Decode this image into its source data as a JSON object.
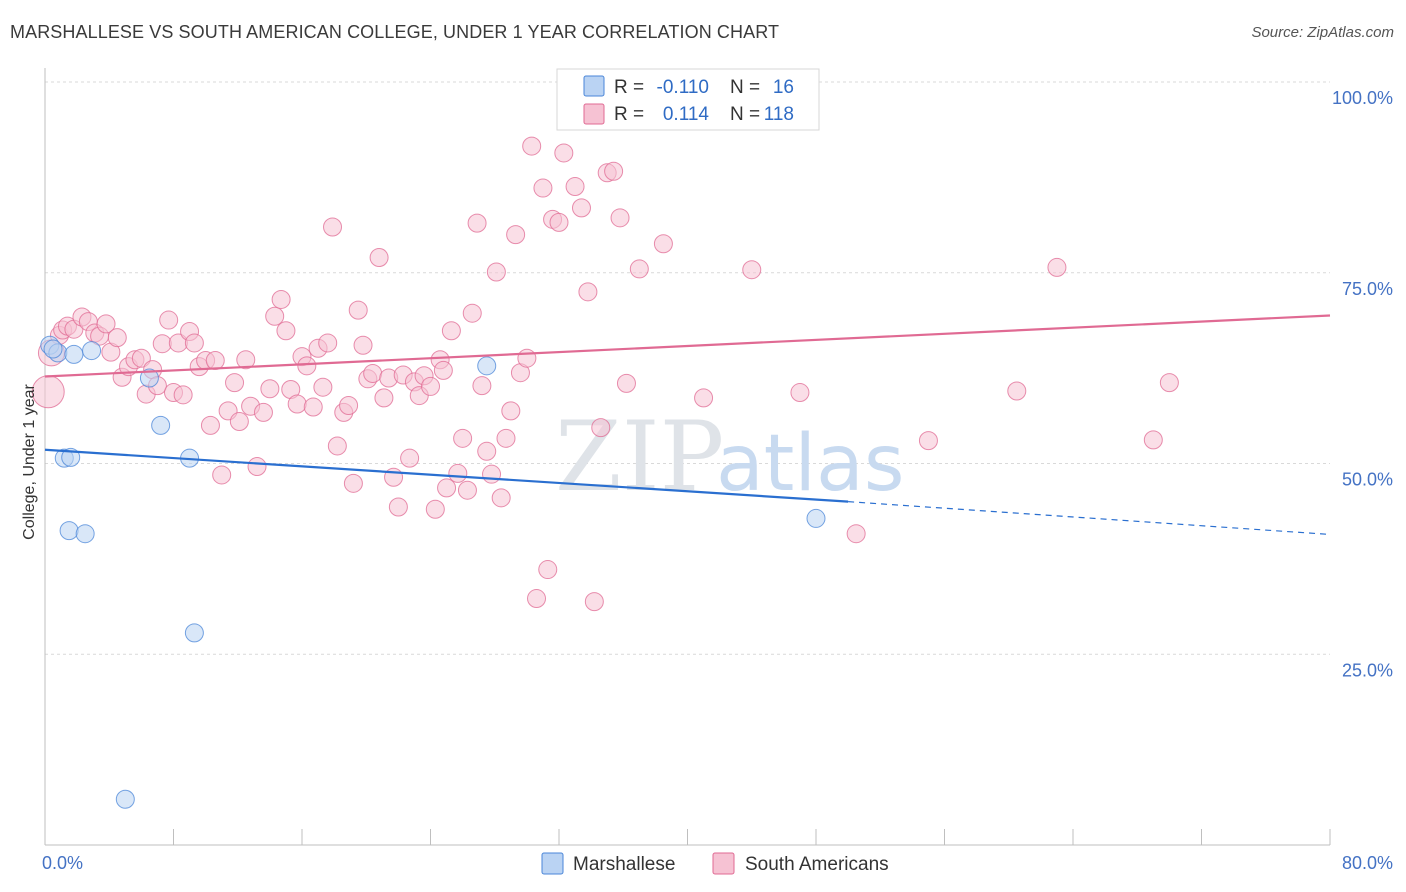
{
  "title": "MARSHALLESE VS SOUTH AMERICAN COLLEGE, UNDER 1 YEAR CORRELATION CHART",
  "source": "Source: ZipAtlas.com",
  "watermark": {
    "part1": "ZIP",
    "part2": "atlas"
  },
  "colors": {
    "blue": "#4a86d8",
    "blue_fill": "#bad3f3",
    "pink": "#e06a93",
    "pink_fill": "#f6c2d3"
  },
  "legend": {
    "r_label": "R =",
    "n_label": "N =",
    "rows": [
      {
        "r": "-0.110",
        "n": "16"
      },
      {
        "r": "0.114",
        "n": "118"
      }
    ]
  },
  "chart_data": {
    "type": "scatter",
    "title": "MARSHALLESE VS SOUTH AMERICAN COLLEGE, UNDER 1 YEAR CORRELATION CHART",
    "ylabel": "College, Under 1 year",
    "xlabel": "",
    "xlim": [
      0,
      80
    ],
    "ylim": [
      0,
      100
    ],
    "x_tick_labels": [
      "0.0%",
      "80.0%"
    ],
    "y_tick_labels": [
      "25.0%",
      "50.0%",
      "75.0%",
      "100.0%"
    ],
    "y_ticks": [
      25,
      50,
      75,
      100
    ],
    "grid": true,
    "series": [
      {
        "name": "Marshallese",
        "color": "#4a86d8",
        "trend": {
          "x0": 0,
          "y0": 51.8,
          "x1": 50,
          "y1": 45.0,
          "dashed_to_x": 80,
          "dashed_to_y": 40.7
        },
        "points": [
          [
            0.3,
            65.5
          ],
          [
            0.8,
            64.5
          ],
          [
            1.2,
            50.7
          ],
          [
            1.5,
            41.2
          ],
          [
            2.5,
            40.8
          ],
          [
            1.8,
            64.3
          ],
          [
            2.9,
            64.8
          ],
          [
            6.5,
            61.2
          ],
          [
            7.2,
            55.0
          ],
          [
            9.0,
            50.7
          ],
          [
            9.3,
            27.8
          ],
          [
            5.0,
            6.0
          ],
          [
            27.5,
            62.8
          ],
          [
            48.0,
            42.8
          ],
          [
            0.5,
            65.0
          ],
          [
            1.6,
            50.8
          ]
        ]
      },
      {
        "name": "South Americans",
        "color": "#e06a93",
        "trend": {
          "x0": 0,
          "y0": 61.4,
          "x1": 80,
          "y1": 69.4
        },
        "points": [
          [
            0.2,
            59.4
          ],
          [
            0.4,
            64.5
          ],
          [
            0.9,
            66.8
          ],
          [
            1.1,
            67.5
          ],
          [
            1.4,
            68.0
          ],
          [
            1.8,
            67.6
          ],
          [
            2.3,
            69.2
          ],
          [
            2.7,
            68.6
          ],
          [
            3.1,
            67.1
          ],
          [
            3.4,
            66.7
          ],
          [
            3.8,
            68.3
          ],
          [
            4.1,
            64.6
          ],
          [
            4.5,
            66.5
          ],
          [
            4.8,
            61.3
          ],
          [
            5.2,
            62.7
          ],
          [
            5.6,
            63.6
          ],
          [
            6.0,
            63.8
          ],
          [
            6.3,
            59.1
          ],
          [
            6.7,
            62.3
          ],
          [
            7.0,
            60.2
          ],
          [
            7.3,
            65.7
          ],
          [
            7.7,
            68.8
          ],
          [
            8.0,
            59.3
          ],
          [
            8.3,
            65.8
          ],
          [
            8.6,
            59.0
          ],
          [
            9.0,
            67.3
          ],
          [
            9.3,
            65.8
          ],
          [
            9.6,
            62.7
          ],
          [
            10.0,
            63.5
          ],
          [
            10.3,
            55.0
          ],
          [
            10.6,
            63.5
          ],
          [
            11.0,
            48.5
          ],
          [
            11.4,
            56.9
          ],
          [
            11.8,
            60.6
          ],
          [
            12.1,
            55.5
          ],
          [
            12.5,
            63.6
          ],
          [
            12.8,
            57.5
          ],
          [
            13.2,
            49.6
          ],
          [
            13.6,
            56.7
          ],
          [
            14.0,
            59.8
          ],
          [
            14.3,
            69.3
          ],
          [
            14.7,
            71.5
          ],
          [
            15.0,
            67.4
          ],
          [
            15.3,
            59.7
          ],
          [
            15.7,
            57.8
          ],
          [
            16.0,
            64.0
          ],
          [
            16.3,
            62.8
          ],
          [
            16.7,
            57.4
          ],
          [
            17.0,
            65.1
          ],
          [
            17.3,
            60.0
          ],
          [
            17.6,
            65.8
          ],
          [
            17.9,
            81.0
          ],
          [
            18.2,
            52.3
          ],
          [
            18.6,
            56.7
          ],
          [
            18.9,
            57.6
          ],
          [
            19.2,
            47.4
          ],
          [
            19.5,
            70.1
          ],
          [
            19.8,
            65.5
          ],
          [
            20.1,
            61.1
          ],
          [
            20.4,
            61.8
          ],
          [
            20.8,
            77.0
          ],
          [
            21.1,
            58.6
          ],
          [
            21.4,
            61.2
          ],
          [
            21.7,
            48.2
          ],
          [
            22.0,
            44.3
          ],
          [
            22.3,
            61.6
          ],
          [
            22.7,
            50.7
          ],
          [
            23.0,
            60.7
          ],
          [
            23.3,
            58.9
          ],
          [
            23.6,
            61.5
          ],
          [
            24.0,
            60.1
          ],
          [
            24.3,
            44.0
          ],
          [
            24.6,
            63.6
          ],
          [
            25.0,
            46.8
          ],
          [
            25.3,
            67.4
          ],
          [
            25.7,
            48.7
          ],
          [
            26.0,
            53.3
          ],
          [
            26.3,
            46.5
          ],
          [
            26.6,
            69.7
          ],
          [
            26.9,
            81.5
          ],
          [
            27.2,
            60.2
          ],
          [
            27.5,
            51.6
          ],
          [
            27.8,
            48.6
          ],
          [
            28.1,
            75.1
          ],
          [
            28.4,
            45.5
          ],
          [
            28.7,
            53.3
          ],
          [
            29.0,
            56.9
          ],
          [
            29.3,
            80.0
          ],
          [
            29.6,
            61.9
          ],
          [
            30.0,
            63.8
          ],
          [
            30.3,
            91.6
          ],
          [
            30.6,
            32.3
          ],
          [
            31.0,
            86.1
          ],
          [
            31.3,
            36.1
          ],
          [
            31.6,
            82.0
          ],
          [
            32.0,
            81.6
          ],
          [
            32.3,
            90.7
          ],
          [
            33.0,
            86.3
          ],
          [
            33.4,
            83.5
          ],
          [
            33.8,
            72.5
          ],
          [
            34.2,
            31.9
          ],
          [
            34.6,
            54.7
          ],
          [
            35.0,
            88.1
          ],
          [
            35.4,
            88.3
          ],
          [
            35.8,
            82.2
          ],
          [
            36.2,
            60.5
          ],
          [
            37.0,
            75.5
          ],
          [
            38.5,
            78.8
          ],
          [
            41.0,
            58.6
          ],
          [
            44.0,
            75.4
          ],
          [
            47.0,
            59.3
          ],
          [
            50.5,
            40.8
          ],
          [
            55.0,
            53.0
          ],
          [
            60.5,
            59.5
          ],
          [
            63.0,
            75.7
          ],
          [
            69.0,
            53.1
          ],
          [
            70.0,
            60.6
          ],
          [
            24.8,
            62.2
          ]
        ]
      }
    ]
  },
  "bottom_legend": [
    "Marshallese",
    "South Americans"
  ]
}
